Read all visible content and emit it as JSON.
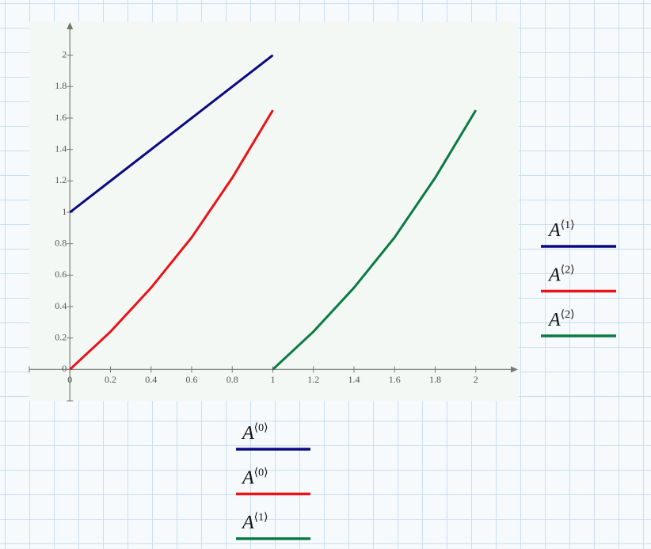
{
  "chart_data": {
    "type": "line",
    "xlim": [
      -0.2,
      2.2
    ],
    "ylim": [
      -0.2,
      2.2
    ],
    "xticks": [
      0,
      0.2,
      0.4,
      0.6,
      0.8,
      1,
      1.2,
      1.4,
      1.6,
      1.8,
      2
    ],
    "yticks": [
      0,
      0.2,
      0.4,
      0.6,
      0.8,
      1,
      1.2,
      1.4,
      1.6,
      1.8,
      2
    ],
    "series": [
      {
        "color": "#0a0a80",
        "x_label": {
          "base": "A",
          "index": "⟨0⟩"
        },
        "y_label": {
          "base": "A",
          "index": "⟨1⟩"
        },
        "x": [
          0,
          1
        ],
        "values": [
          1,
          2
        ]
      },
      {
        "color": "#e8141a",
        "x_label": {
          "base": "A",
          "index": "⟨0⟩"
        },
        "y_label": {
          "base": "A",
          "index": "⟨2⟩"
        },
        "x": [
          0,
          0.2,
          0.4,
          0.6,
          0.8,
          1
        ],
        "values": [
          0,
          0.24,
          0.52,
          0.84,
          1.22,
          1.65
        ]
      },
      {
        "color": "#0b7a45",
        "x_label": {
          "base": "A",
          "index": "⟨1⟩"
        },
        "y_label": {
          "base": "A",
          "index": "⟨2⟩"
        },
        "x": [
          1,
          1.2,
          1.4,
          1.6,
          1.8,
          2
        ],
        "values": [
          0,
          0.24,
          0.52,
          0.84,
          1.22,
          1.65
        ]
      }
    ]
  }
}
